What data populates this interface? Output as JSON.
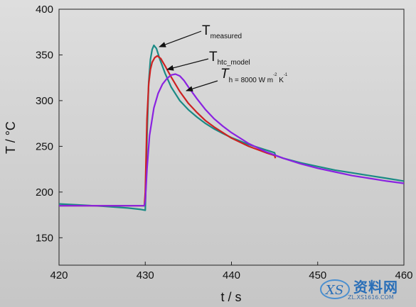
{
  "chart_data": {
    "type": "line",
    "xlabel": "t / s",
    "ylabel": "T / °C",
    "xlim": [
      420,
      460
    ],
    "ylim": [
      120,
      400
    ],
    "xticks": [
      420,
      430,
      440,
      450,
      460
    ],
    "yticks": [
      150,
      200,
      250,
      300,
      350,
      400
    ],
    "grid": false,
    "series": [
      {
        "key": "measured",
        "color": "#1b8a85",
        "points": [
          [
            420,
            187
          ],
          [
            422,
            186
          ],
          [
            425,
            184.5
          ],
          [
            428,
            182.5
          ],
          [
            429.5,
            181
          ],
          [
            430,
            180
          ],
          [
            430.2,
            260
          ],
          [
            430.4,
            320
          ],
          [
            430.6,
            345
          ],
          [
            430.8,
            356
          ],
          [
            431,
            360.5
          ],
          [
            431.3,
            357
          ],
          [
            431.7,
            345
          ],
          [
            432.3,
            330
          ],
          [
            433,
            315
          ],
          [
            434,
            300
          ],
          [
            435,
            290
          ],
          [
            436,
            282
          ],
          [
            437,
            275
          ],
          [
            438,
            269
          ],
          [
            439,
            264
          ],
          [
            440,
            259.5
          ],
          [
            442,
            252
          ],
          [
            444,
            246
          ],
          [
            445,
            243
          ],
          [
            445.1,
            240
          ],
          [
            446,
            237
          ],
          [
            448,
            232
          ],
          [
            450,
            228
          ],
          [
            452,
            224
          ],
          [
            454,
            221
          ],
          [
            456,
            218
          ],
          [
            458,
            215
          ],
          [
            460,
            212
          ]
        ]
      },
      {
        "key": "htc_model",
        "color": "#cc2222",
        "points": [
          [
            420,
            185
          ],
          [
            425,
            185
          ],
          [
            429.9,
            185
          ],
          [
            430,
            200
          ],
          [
            430.2,
            280
          ],
          [
            430.4,
            318
          ],
          [
            430.6,
            334
          ],
          [
            430.8,
            342
          ],
          [
            431.1,
            347
          ],
          [
            431.4,
            349
          ],
          [
            431.8,
            346
          ],
          [
            432.3,
            338
          ],
          [
            433,
            326
          ],
          [
            434,
            310
          ],
          [
            435,
            297
          ],
          [
            436,
            287
          ],
          [
            437,
            278
          ],
          [
            438,
            271
          ],
          [
            439,
            265
          ],
          [
            440,
            259
          ],
          [
            442,
            250
          ],
          [
            444,
            243
          ],
          [
            445,
            240
          ],
          [
            445.1,
            237
          ]
        ]
      },
      {
        "key": "h8000",
        "color": "#8a22e0",
        "points": [
          [
            420,
            185
          ],
          [
            425,
            185
          ],
          [
            429.9,
            185
          ],
          [
            430,
            190
          ],
          [
            430.2,
            225
          ],
          [
            430.5,
            262
          ],
          [
            431,
            292
          ],
          [
            431.5,
            308
          ],
          [
            432,
            318
          ],
          [
            432.5,
            324
          ],
          [
            433,
            328
          ],
          [
            433.5,
            329
          ],
          [
            434,
            327
          ],
          [
            434.5,
            322
          ],
          [
            435,
            315
          ],
          [
            436,
            302
          ],
          [
            437,
            290
          ],
          [
            438,
            280
          ],
          [
            439,
            272
          ],
          [
            440,
            265
          ],
          [
            442,
            253
          ],
          [
            444,
            244
          ],
          [
            446,
            237
          ],
          [
            448,
            231
          ],
          [
            450,
            226
          ],
          [
            452,
            222
          ],
          [
            454,
            218
          ],
          [
            456,
            215
          ],
          [
            458,
            212
          ],
          [
            460,
            209.5
          ]
        ]
      }
    ],
    "annotations": [
      {
        "main": "T",
        "sub": "measured"
      },
      {
        "main": "T",
        "sub": "htc_model"
      },
      {
        "main": "T",
        "sub": "h = 8000 W m",
        "sup1": "-2",
        "mid": " K",
        "sup2": "-1"
      }
    ]
  },
  "watermark": {
    "brand": "资料网",
    "url": "ZL.XS1616.COM"
  }
}
